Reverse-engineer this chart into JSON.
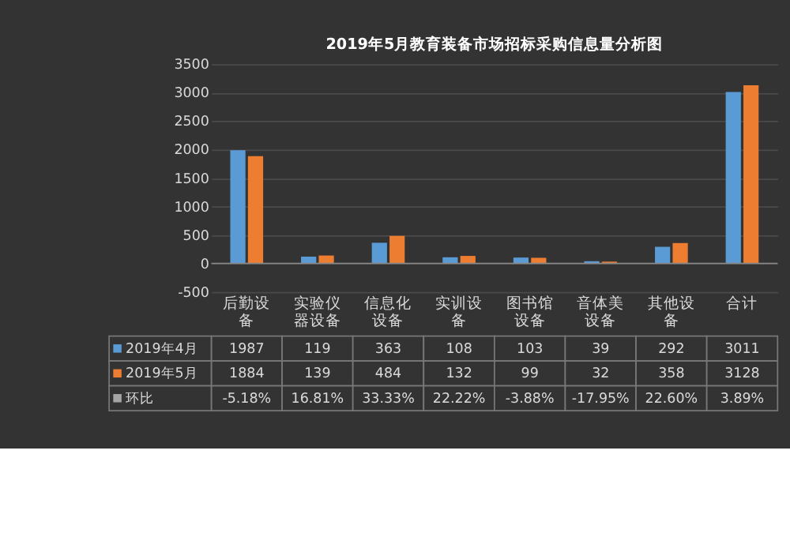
{
  "chart_data": {
    "type": "bar",
    "title": "2019年5月教育装备市场招标采购信息量分析图",
    "categories": [
      "后勤设备",
      "实验仪器设备",
      "信息化设备",
      "实训设备",
      "图书馆设备",
      "音体美设备",
      "其他设备",
      "合计"
    ],
    "series": [
      {
        "name": "2019年4月",
        "color": "#5b9bd5",
        "values": [
          1987,
          119,
          363,
          108,
          103,
          39,
          292,
          3011
        ]
      },
      {
        "name": "2019年5月",
        "color": "#ed7d31",
        "values": [
          1884,
          139,
          484,
          132,
          99,
          32,
          358,
          3128
        ]
      },
      {
        "name": "环比",
        "color": "#a5a5a5",
        "values": [
          null,
          null,
          null,
          null,
          null,
          null,
          null,
          null
        ],
        "value_labels": [
          "-5.18%",
          "16.81%",
          "33.33%",
          "22.22%",
          "-3.88%",
          "-17.95%",
          "22.60%",
          "3.89%"
        ]
      }
    ],
    "ylim": [
      -500,
      3500
    ],
    "yticks": [
      -500,
      0,
      500,
      1000,
      1500,
      2000,
      2500,
      3000,
      3500
    ],
    "grid": "y",
    "legend": "bottom left",
    "data_labels": true
  }
}
